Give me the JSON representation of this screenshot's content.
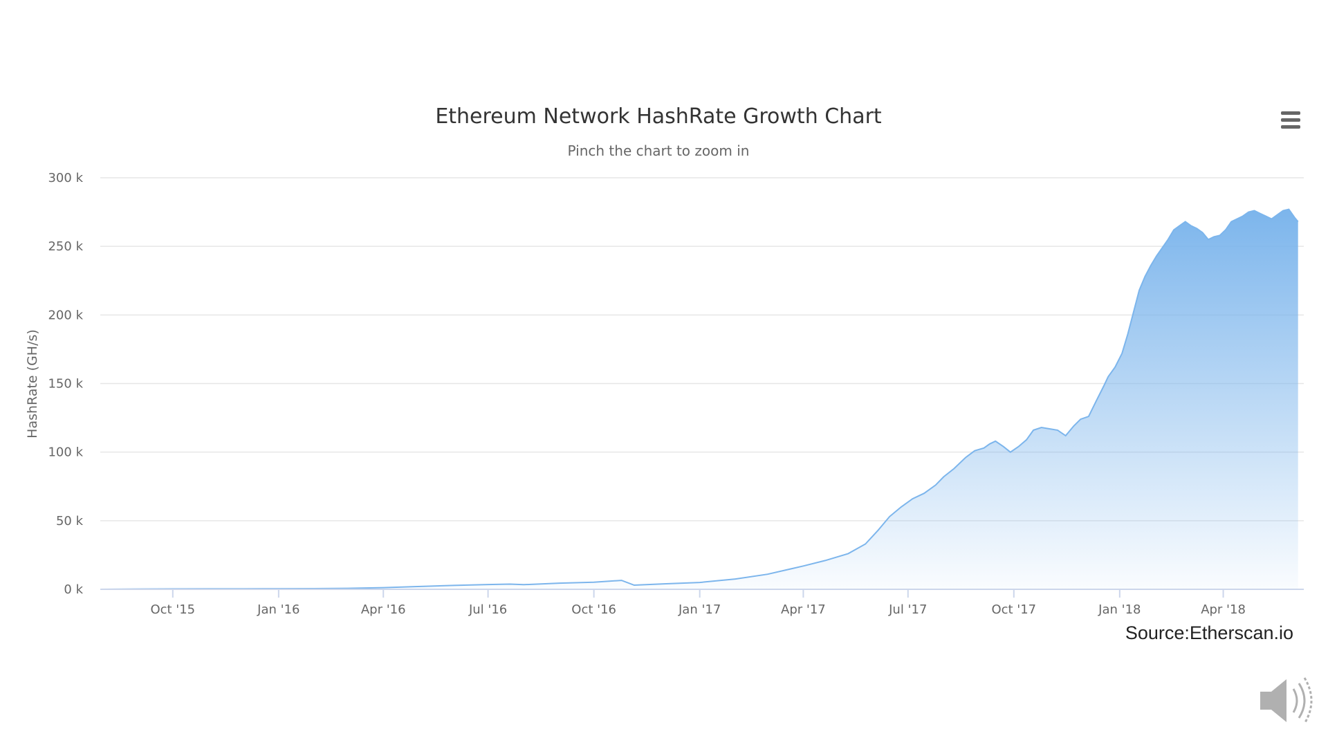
{
  "chart_data": {
    "type": "area",
    "title": "Ethereum Network HashRate Growth Chart",
    "subtitle": "Pinch the chart to zoom in",
    "xlabel": "",
    "ylabel": "HashRate (GH/s)",
    "ylim": [
      0,
      300000
    ],
    "xlim": [
      "2015-07-30",
      "2018-06-10"
    ],
    "y_ticks": [
      {
        "value": 0,
        "label": "0 k"
      },
      {
        "value": 50000,
        "label": "50 k"
      },
      {
        "value": 100000,
        "label": "100 k"
      },
      {
        "value": 150000,
        "label": "150 k"
      },
      {
        "value": 200000,
        "label": "200 k"
      },
      {
        "value": 250000,
        "label": "250 k"
      },
      {
        "value": 300000,
        "label": "300 k"
      }
    ],
    "x_ticks": [
      {
        "date": "2015-10-01",
        "label": "Oct '15"
      },
      {
        "date": "2016-01-01",
        "label": "Jan '16"
      },
      {
        "date": "2016-04-01",
        "label": "Apr '16"
      },
      {
        "date": "2016-07-01",
        "label": "Jul '16"
      },
      {
        "date": "2016-10-01",
        "label": "Oct '16"
      },
      {
        "date": "2017-01-01",
        "label": "Jan '17"
      },
      {
        "date": "2017-04-01",
        "label": "Apr '17"
      },
      {
        "date": "2017-07-01",
        "label": "Jul '17"
      },
      {
        "date": "2017-10-01",
        "label": "Oct '17"
      },
      {
        "date": "2018-01-01",
        "label": "Jan '18"
      },
      {
        "date": "2018-04-01",
        "label": "Apr '18"
      }
    ],
    "grid": true,
    "legend": "none",
    "series": [
      {
        "color": "#7cb5ec",
        "x": [
          "2015-07-30",
          "2015-09-01",
          "2015-10-01",
          "2015-11-01",
          "2015-12-01",
          "2016-01-01",
          "2016-02-01",
          "2016-03-01",
          "2016-04-01",
          "2016-05-01",
          "2016-06-01",
          "2016-07-01",
          "2016-07-20",
          "2016-08-01",
          "2016-09-01",
          "2016-10-01",
          "2016-10-25",
          "2016-11-05",
          "2016-12-01",
          "2017-01-01",
          "2017-02-01",
          "2017-03-01",
          "2017-04-01",
          "2017-04-20",
          "2017-05-10",
          "2017-05-25",
          "2017-06-05",
          "2017-06-15",
          "2017-06-25",
          "2017-07-05",
          "2017-07-15",
          "2017-07-25",
          "2017-08-01",
          "2017-08-10",
          "2017-08-20",
          "2017-08-28",
          "2017-09-05",
          "2017-09-10",
          "2017-09-15",
          "2017-09-22",
          "2017-09-28",
          "2017-10-05",
          "2017-10-12",
          "2017-10-18",
          "2017-10-25",
          "2017-11-01",
          "2017-11-08",
          "2017-11-15",
          "2017-11-22",
          "2017-11-28",
          "2017-12-05",
          "2017-12-12",
          "2017-12-18",
          "2017-12-22",
          "2017-12-28",
          "2018-01-03",
          "2018-01-08",
          "2018-01-13",
          "2018-01-18",
          "2018-01-23",
          "2018-01-28",
          "2018-02-02",
          "2018-02-07",
          "2018-02-12",
          "2018-02-17",
          "2018-02-22",
          "2018-02-27",
          "2018-03-04",
          "2018-03-09",
          "2018-03-14",
          "2018-03-19",
          "2018-03-24",
          "2018-03-29",
          "2018-04-03",
          "2018-04-08",
          "2018-04-13",
          "2018-04-18",
          "2018-04-23",
          "2018-04-28",
          "2018-05-03",
          "2018-05-08",
          "2018-05-13",
          "2018-05-18",
          "2018-05-23",
          "2018-05-28",
          "2018-06-02",
          "2018-06-05"
        ],
        "values": [
          0,
          200,
          300,
          350,
          400,
          450,
          500,
          700,
          1200,
          2000,
          2800,
          3500,
          3800,
          3400,
          4500,
          5200,
          6500,
          3000,
          4000,
          5000,
          7500,
          11000,
          17000,
          21000,
          26000,
          33000,
          43000,
          53000,
          60000,
          66000,
          70000,
          76000,
          82000,
          88000,
          96000,
          101000,
          103000,
          106000,
          108000,
          104000,
          100000,
          104000,
          109000,
          116000,
          118000,
          117000,
          116000,
          112000,
          119000,
          124000,
          126000,
          138000,
          148000,
          155000,
          162000,
          172000,
          186000,
          202000,
          218000,
          228000,
          236000,
          243000,
          249000,
          255000,
          262000,
          265000,
          268000,
          265000,
          263000,
          260000,
          255000,
          257000,
          258000,
          262000,
          268000,
          270000,
          272000,
          275000,
          276000,
          274000,
          272000,
          270000,
          273000,
          276000,
          277000,
          271000,
          268000
        ]
      }
    ]
  },
  "ui": {
    "source_label": "Source:Etherscan.io",
    "menu_icon": "hamburger-menu-icon",
    "speaker_icon": "speaker-icon",
    "grid_color": "#e6e6e6",
    "axis_color": "#ccd6eb"
  }
}
